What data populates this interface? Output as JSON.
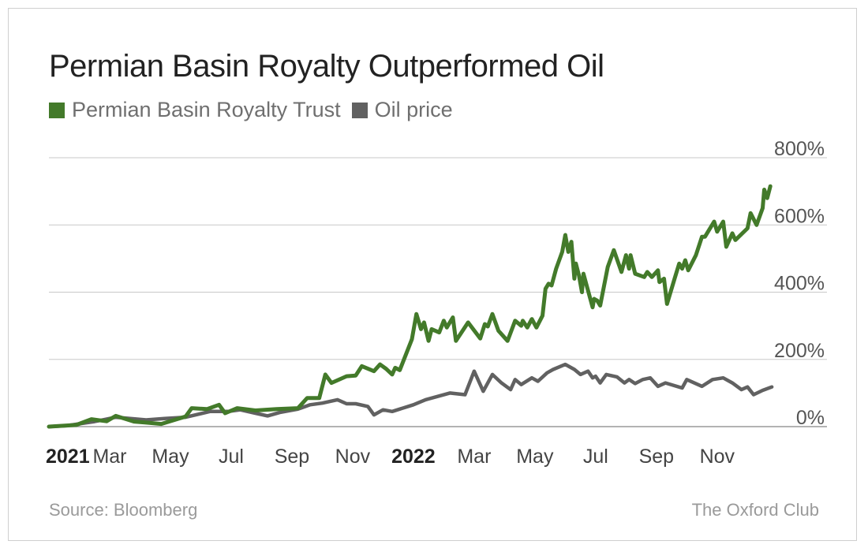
{
  "chart_data": {
    "type": "line",
    "title": "Permian Basin Royalty Outperformed Oil",
    "ylim": [
      0,
      800
    ],
    "yticks": [
      0,
      200,
      400,
      600,
      800
    ],
    "ytick_suffix": "%",
    "x_range": [
      0,
      23.2
    ],
    "x_unit": "months since Jan 2021",
    "xticks": [
      {
        "x": 0,
        "label": "2021",
        "bold": true
      },
      {
        "x": 2,
        "label": "Mar",
        "bold": false
      },
      {
        "x": 4,
        "label": "May",
        "bold": false
      },
      {
        "x": 6,
        "label": "Jul",
        "bold": false
      },
      {
        "x": 8,
        "label": "Sep",
        "bold": false
      },
      {
        "x": 10,
        "label": "Nov",
        "bold": false
      },
      {
        "x": 12,
        "label": "2022",
        "bold": true
      },
      {
        "x": 14,
        "label": "Mar",
        "bold": false
      },
      {
        "x": 16,
        "label": "May",
        "bold": false
      },
      {
        "x": 18,
        "label": "Jul",
        "bold": false
      },
      {
        "x": 20,
        "label": "Sep",
        "bold": false
      },
      {
        "x": 22,
        "label": "Nov",
        "bold": false
      }
    ],
    "grid": true,
    "legend_position": "top-left",
    "series": [
      {
        "name": "Permian Basin Royalty Trust",
        "color": "#437a2a",
        "points": [
          [
            0,
            0
          ],
          [
            0.9,
            5
          ],
          [
            1.4,
            22
          ],
          [
            1.9,
            16
          ],
          [
            2.2,
            32
          ],
          [
            2.8,
            15
          ],
          [
            3.2,
            12
          ],
          [
            3.7,
            8
          ],
          [
            4.5,
            30
          ],
          [
            4.7,
            55
          ],
          [
            5.2,
            52
          ],
          [
            5.6,
            65
          ],
          [
            5.8,
            40
          ],
          [
            6.2,
            55
          ],
          [
            6.8,
            48
          ],
          [
            7.5,
            52
          ],
          [
            8.2,
            55
          ],
          [
            8.5,
            85
          ],
          [
            8.9,
            85
          ],
          [
            9.1,
            155
          ],
          [
            9.3,
            130
          ],
          [
            9.8,
            150
          ],
          [
            10.1,
            152
          ],
          [
            10.3,
            180
          ],
          [
            10.7,
            165
          ],
          [
            10.9,
            185
          ],
          [
            11.1,
            172
          ],
          [
            11.3,
            155
          ],
          [
            11.4,
            175
          ],
          [
            11.55,
            168
          ],
          [
            11.95,
            260
          ],
          [
            12.1,
            335
          ],
          [
            12.25,
            290
          ],
          [
            12.35,
            310
          ],
          [
            12.5,
            255
          ],
          [
            12.6,
            290
          ],
          [
            12.85,
            280
          ],
          [
            13.0,
            315
          ],
          [
            13.1,
            295
          ],
          [
            13.3,
            325
          ],
          [
            13.4,
            255
          ],
          [
            13.8,
            310
          ],
          [
            14.2,
            262
          ],
          [
            14.35,
            305
          ],
          [
            14.45,
            298
          ],
          [
            14.6,
            335
          ],
          [
            14.8,
            285
          ],
          [
            15.1,
            255
          ],
          [
            15.35,
            315
          ],
          [
            15.55,
            300
          ],
          [
            15.6,
            315
          ],
          [
            15.75,
            295
          ],
          [
            15.9,
            320
          ],
          [
            16.05,
            295
          ],
          [
            16.25,
            330
          ],
          [
            16.35,
            410
          ],
          [
            16.45,
            425
          ],
          [
            16.55,
            420
          ],
          [
            16.7,
            470
          ],
          [
            16.9,
            520
          ],
          [
            17.0,
            570
          ],
          [
            17.1,
            520
          ],
          [
            17.2,
            550
          ],
          [
            17.3,
            440
          ],
          [
            17.35,
            485
          ],
          [
            17.45,
            450
          ],
          [
            17.55,
            400
          ],
          [
            17.6,
            455
          ],
          [
            17.9,
            355
          ],
          [
            17.95,
            380
          ],
          [
            18.05,
            375
          ],
          [
            18.15,
            360
          ],
          [
            18.4,
            475
          ],
          [
            18.6,
            525
          ],
          [
            18.85,
            460
          ],
          [
            19.0,
            510
          ],
          [
            19.1,
            470
          ],
          [
            19.15,
            510
          ],
          [
            19.3,
            455
          ],
          [
            19.6,
            445
          ],
          [
            19.7,
            460
          ],
          [
            19.85,
            445
          ],
          [
            20.05,
            465
          ],
          [
            20.1,
            430
          ],
          [
            20.25,
            440
          ],
          [
            20.35,
            365
          ],
          [
            20.6,
            440
          ],
          [
            20.75,
            485
          ],
          [
            20.85,
            470
          ],
          [
            20.95,
            495
          ],
          [
            21.05,
            465
          ],
          [
            21.3,
            510
          ],
          [
            21.5,
            565
          ],
          [
            21.6,
            565
          ],
          [
            21.9,
            610
          ],
          [
            22.0,
            580
          ],
          [
            22.2,
            610
          ],
          [
            22.3,
            535
          ],
          [
            22.5,
            575
          ],
          [
            22.6,
            555
          ],
          [
            23.0,
            590
          ],
          [
            23.1,
            635
          ],
          [
            23.3,
            600
          ],
          [
            23.5,
            650
          ],
          [
            23.55,
            705
          ],
          [
            23.65,
            680
          ],
          [
            23.75,
            715
          ]
        ]
      },
      {
        "name": "Oil price",
        "color": "#616161",
        "points": [
          [
            0,
            0
          ],
          [
            0.6,
            3
          ],
          [
            1.5,
            15
          ],
          [
            2.2,
            28
          ],
          [
            3.2,
            20
          ],
          [
            3.8,
            24
          ],
          [
            4.5,
            28
          ],
          [
            5.3,
            45
          ],
          [
            5.9,
            45
          ],
          [
            6.3,
            50
          ],
          [
            6.8,
            40
          ],
          [
            7.2,
            32
          ],
          [
            7.6,
            42
          ],
          [
            8.2,
            52
          ],
          [
            8.6,
            65
          ],
          [
            9.0,
            70
          ],
          [
            9.5,
            80
          ],
          [
            9.8,
            68
          ],
          [
            10.1,
            68
          ],
          [
            10.5,
            60
          ],
          [
            10.7,
            35
          ],
          [
            11.0,
            50
          ],
          [
            11.3,
            45
          ],
          [
            12.0,
            65
          ],
          [
            12.4,
            80
          ],
          [
            13.2,
            100
          ],
          [
            13.7,
            95
          ],
          [
            14.0,
            165
          ],
          [
            14.3,
            105
          ],
          [
            14.6,
            155
          ],
          [
            14.9,
            130
          ],
          [
            15.2,
            110
          ],
          [
            15.35,
            140
          ],
          [
            15.55,
            125
          ],
          [
            15.9,
            145
          ],
          [
            16.1,
            135
          ],
          [
            16.4,
            160
          ],
          [
            16.6,
            170
          ],
          [
            17.0,
            185
          ],
          [
            17.3,
            170
          ],
          [
            17.5,
            155
          ],
          [
            17.75,
            165
          ],
          [
            17.9,
            145
          ],
          [
            18.0,
            150
          ],
          [
            18.15,
            130
          ],
          [
            18.35,
            155
          ],
          [
            18.7,
            148
          ],
          [
            18.95,
            130
          ],
          [
            19.1,
            140
          ],
          [
            19.3,
            128
          ],
          [
            19.55,
            140
          ],
          [
            19.8,
            145
          ],
          [
            20.05,
            120
          ],
          [
            20.3,
            130
          ],
          [
            20.85,
            115
          ],
          [
            21.0,
            140
          ],
          [
            21.5,
            120
          ],
          [
            21.85,
            140
          ],
          [
            22.2,
            145
          ],
          [
            22.5,
            130
          ],
          [
            22.8,
            110
          ],
          [
            23.0,
            118
          ],
          [
            23.2,
            95
          ],
          [
            23.5,
            108
          ],
          [
            23.8,
            118
          ]
        ]
      }
    ]
  },
  "source": "Source: Bloomberg",
  "credit": "The Oxford Club"
}
